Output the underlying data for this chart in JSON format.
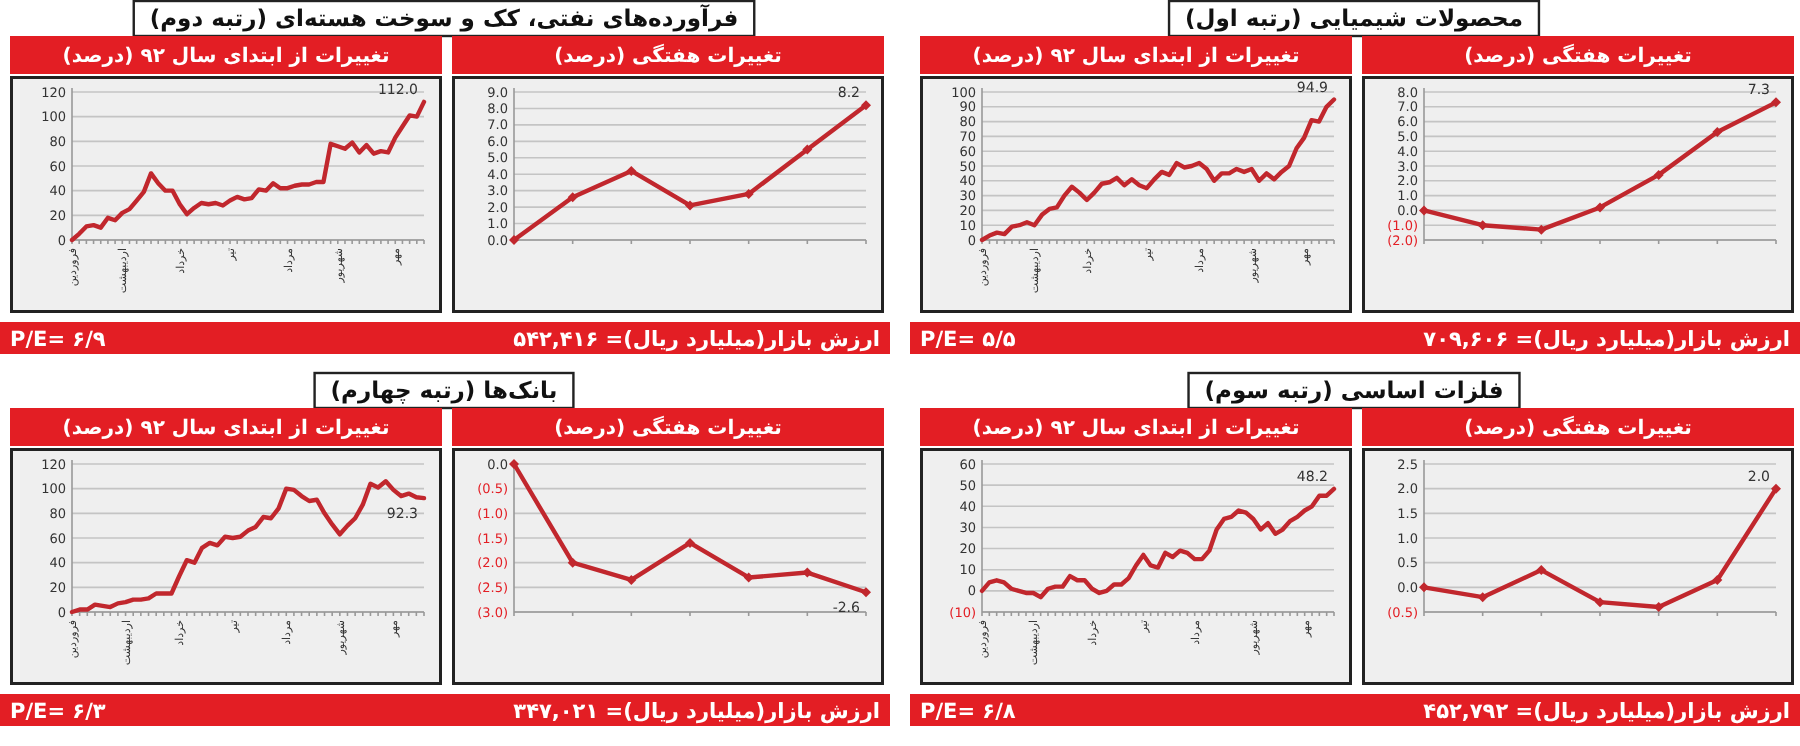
{
  "chart_data": [
    {
      "type": "other",
      "title": "محصولات شیمیایی (رتبه اول)",
      "annotations": [
        "ارزش بازار(میلیارد ریال)= ۷۰۹,۶۰۶",
        "P/E= ۵/۵"
      ]
    },
    {
      "type": "line",
      "title": "تغییرات هفتگی (درصد)",
      "categories": [
        null,
        null,
        null,
        null,
        null,
        null,
        null
      ],
      "values": [
        0.0,
        -1.0,
        -1.3,
        0.2,
        2.4,
        5.3,
        7.3
      ],
      "value_labels": [
        null,
        null,
        null,
        null,
        null,
        null,
        "7.3"
      ],
      "color": "#c1272d",
      "marker": "diamond",
      "grid": "y",
      "ylim": [
        -2,
        8
      ],
      "yticks": [
        {
          "value": -2,
          "label": "(2.0)"
        },
        {
          "value": -1,
          "label": "(1.0)"
        },
        {
          "value": 0,
          "label": "0.0"
        },
        {
          "value": 1,
          "label": "1.0"
        },
        {
          "value": 2,
          "label": "2.0"
        },
        {
          "value": 3,
          "label": "3.0"
        },
        {
          "value": 4,
          "label": "4.0"
        },
        {
          "value": 5,
          "label": "5.0"
        },
        {
          "value": 6,
          "label": "6.0"
        },
        {
          "value": 7,
          "label": "7.0"
        },
        {
          "value": 8,
          "label": "8.0"
        }
      ]
    },
    {
      "type": "line",
      "title": "تغییرات از ابتدای سال ۹۲ (درصد)",
      "color": "#c1272d",
      "grid": "y",
      "categories": [
        "فروردین",
        null,
        null,
        null,
        null,
        null,
        null,
        "اردیبهشت",
        null,
        null,
        null,
        null,
        null,
        null,
        "خرداد",
        null,
        null,
        null,
        null,
        null,
        null,
        null,
        "تیر",
        null,
        null,
        null,
        null,
        null,
        null,
        "مرداد",
        null,
        null,
        null,
        null,
        null,
        null,
        "شهریور",
        null,
        null,
        null,
        null,
        null,
        null,
        "مهر",
        null,
        null,
        null,
        null
      ],
      "ylim": [
        0,
        100
      ],
      "yticks": [
        0,
        10,
        20,
        30,
        40,
        50,
        60,
        70,
        80,
        90,
        100
      ],
      "values": [
        0,
        3,
        5,
        4,
        9,
        10,
        12,
        10,
        17,
        21,
        22,
        30,
        36,
        32,
        27,
        32,
        38,
        39,
        42,
        37,
        41,
        37,
        35,
        41,
        46,
        44,
        52,
        49,
        50,
        52,
        48,
        40,
        45,
        45,
        48,
        46,
        48,
        40,
        45,
        41,
        46,
        50,
        62,
        69,
        81,
        80,
        90,
        94.9
      ],
      "value_labels": [
        null,
        null,
        null,
        null,
        null,
        null,
        null,
        null,
        null,
        null,
        null,
        null,
        null,
        null,
        null,
        null,
        null,
        null,
        null,
        null,
        null,
        null,
        null,
        null,
        null,
        null,
        null,
        null,
        null,
        null,
        null,
        null,
        null,
        null,
        null,
        null,
        null,
        null,
        null,
        null,
        null,
        null,
        null,
        null,
        null,
        null,
        null,
        "94.9"
      ]
    },
    {
      "type": "other",
      "title": "فرآورده‌های نفتی، کک و سوخت هسته‌ای (رتبه دوم)",
      "annotations": [
        "ارزش بازار(میلیارد ریال)= ۵۴۲,۴۱۶",
        "P/E= ۶/۹"
      ]
    },
    {
      "type": "line",
      "title": "تغییرات هفتگی (درصد)",
      "categories": [
        null,
        null,
        null,
        null,
        null,
        null,
        null
      ],
      "values": [
        0.0,
        2.6,
        4.2,
        2.1,
        2.8,
        5.5,
        8.2
      ],
      "value_labels": [
        null,
        null,
        null,
        null,
        null,
        null,
        "8.2"
      ],
      "color": "#c1272d",
      "marker": "diamond",
      "grid": "y",
      "ylim": [
        0,
        9
      ],
      "yticks": [
        {
          "value": 0,
          "label": "0.0"
        },
        {
          "value": 1,
          "label": "1.0"
        },
        {
          "value": 2,
          "label": "2.0"
        },
        {
          "value": 3,
          "label": "3.0"
        },
        {
          "value": 4,
          "label": "4.0"
        },
        {
          "value": 5,
          "label": "5.0"
        },
        {
          "value": 6,
          "label": "6.0"
        },
        {
          "value": 7,
          "label": "7.0"
        },
        {
          "value": 8,
          "label": "8.0"
        },
        {
          "value": 9,
          "label": "9.0"
        }
      ]
    },
    {
      "type": "line",
      "title": "تغییرات از ابتدای سال ۹۲ (درصد)",
      "color": "#c1272d",
      "grid": "y",
      "categories": [
        "فروردین",
        null,
        null,
        null,
        null,
        null,
        null,
        "اردیبهشت",
        null,
        null,
        null,
        null,
        null,
        null,
        null,
        "خرداد",
        null,
        null,
        null,
        null,
        null,
        null,
        "تیر",
        null,
        null,
        null,
        null,
        null,
        null,
        null,
        "مرداد",
        null,
        null,
        null,
        null,
        null,
        null,
        "شهریور",
        null,
        null,
        null,
        null,
        null,
        null,
        null,
        "مهر",
        null,
        null,
        null,
        null
      ],
      "ylim": [
        0,
        120
      ],
      "yticks": [
        0,
        20,
        40,
        60,
        80,
        100,
        120
      ],
      "values": [
        0,
        5,
        11,
        12,
        10,
        18,
        16,
        22,
        25,
        32,
        39,
        54,
        46,
        40,
        40,
        29,
        21,
        26,
        30,
        29,
        30,
        28,
        32,
        35,
        33,
        34,
        41,
        40,
        46,
        42,
        42,
        44,
        45,
        45,
        47,
        47,
        78,
        76,
        74,
        79,
        71,
        77,
        70,
        72,
        71,
        83,
        92,
        101,
        100,
        112.0
      ],
      "value_labels": [
        null,
        null,
        null,
        null,
        null,
        null,
        null,
        null,
        null,
        null,
        null,
        null,
        null,
        null,
        null,
        null,
        null,
        null,
        null,
        null,
        null,
        null,
        null,
        null,
        null,
        null,
        null,
        null,
        null,
        null,
        null,
        null,
        null,
        null,
        null,
        null,
        null,
        null,
        null,
        null,
        null,
        null,
        null,
        null,
        null,
        null,
        null,
        null,
        null,
        "112.0"
      ]
    },
    {
      "type": "other",
      "title": "فلزات اساسی (رتبه سوم)",
      "annotations": [
        "ارزش بازار(میلیارد ریال)= ۴۵۲,۷۹۲",
        "P/E= ۶/۸"
      ]
    },
    {
      "type": "line",
      "title": "تغییرات هفتگی (درصد)",
      "categories": [
        null,
        null,
        null,
        null,
        null,
        null,
        null
      ],
      "values": [
        0.0,
        -0.2,
        0.35,
        -0.3,
        -0.4,
        0.15,
        2.0
      ],
      "value_labels": [
        null,
        null,
        null,
        null,
        null,
        null,
        "2.0"
      ],
      "color": "#c1272d",
      "marker": "diamond",
      "grid": "y",
      "ylim": [
        -0.5,
        2.5
      ],
      "yticks": [
        {
          "value": -0.5,
          "label": "(0.5)"
        },
        {
          "value": 0,
          "label": "0.0"
        },
        {
          "value": 0.5,
          "label": "0.5"
        },
        {
          "value": 1,
          "label": "1.0"
        },
        {
          "value": 1.5,
          "label": "1.5"
        },
        {
          "value": 2,
          "label": "2.0"
        },
        {
          "value": 2.5,
          "label": "2.5"
        }
      ]
    },
    {
      "type": "line",
      "title": "تغییرات از ابتدای سال ۹۲ (درصد)",
      "color": "#c1272d",
      "grid": "y",
      "categories": [
        "فروردین",
        null,
        null,
        null,
        null,
        null,
        null,
        "اردیبهشت",
        null,
        null,
        null,
        null,
        null,
        null,
        null,
        "خرداد",
        null,
        null,
        null,
        null,
        null,
        null,
        "تیر",
        null,
        null,
        null,
        null,
        null,
        null,
        "مرداد",
        null,
        null,
        null,
        null,
        null,
        null,
        null,
        "شهریور",
        null,
        null,
        null,
        null,
        null,
        null,
        "مهر",
        null,
        null,
        null,
        null
      ],
      "ylim": [
        -10,
        60
      ],
      "yticks": [
        {
          "value": -10,
          "label": "(10)"
        },
        0,
        10,
        20,
        30,
        40,
        50,
        60
      ],
      "values": [
        0,
        4,
        5,
        4,
        1,
        0,
        -1,
        -1,
        -3,
        1,
        2,
        2,
        7,
        5,
        5,
        1,
        -1,
        0,
        3,
        3,
        6,
        12,
        17,
        12,
        11,
        18,
        16,
        19,
        18,
        15,
        15,
        19,
        29,
        34,
        35,
        38,
        37,
        34,
        29,
        32,
        27,
        29,
        33,
        35,
        38,
        40,
        45,
        45,
        48.2
      ],
      "value_labels": [
        null,
        null,
        null,
        null,
        null,
        null,
        null,
        null,
        null,
        null,
        null,
        null,
        null,
        null,
        null,
        null,
        null,
        null,
        null,
        null,
        null,
        null,
        null,
        null,
        null,
        null,
        null,
        null,
        null,
        null,
        null,
        null,
        null,
        null,
        null,
        null,
        null,
        null,
        null,
        null,
        null,
        null,
        null,
        null,
        null,
        null,
        null,
        null,
        "48.2"
      ]
    },
    {
      "type": "other",
      "title": "بانک‌ها (رتبه چهارم)",
      "annotations": [
        "ارزش بازار(میلیارد ریال)= ۳۴۷,۰۲۱",
        "P/E= ۶/۳"
      ]
    },
    {
      "type": "line",
      "title": "تغییرات هفتگی (درصد)",
      "categories": [
        null,
        null,
        null,
        null,
        null,
        null,
        null
      ],
      "values": [
        0.0,
        -2.0,
        -2.35,
        -1.6,
        -2.3,
        -2.2,
        -2.6
      ],
      "value_labels": [
        null,
        null,
        null,
        null,
        null,
        null,
        "-2.6"
      ],
      "color": "#c1272d",
      "marker": "diamond",
      "grid": "y",
      "ylim": [
        -3,
        0
      ],
      "yticks": [
        {
          "value": -3,
          "label": "(3.0)"
        },
        {
          "value": -2.5,
          "label": "(2.5)"
        },
        {
          "value": -2,
          "label": "(2.0)"
        },
        {
          "value": -1.5,
          "label": "(1.5)"
        },
        {
          "value": -1,
          "label": "(1.0)"
        },
        {
          "value": -0.5,
          "label": "(0.5)"
        },
        {
          "value": 0,
          "label": "0.0"
        }
      ]
    },
    {
      "type": "line",
      "title": "تغییرات از ابتدای سال ۹۲ (درصد)",
      "color": "#c1272d",
      "grid": "y",
      "categories": [
        "فروردین",
        null,
        null,
        null,
        null,
        null,
        null,
        "اردیبهشت",
        null,
        null,
        null,
        null,
        null,
        null,
        "خرداد",
        null,
        null,
        null,
        null,
        null,
        null,
        "تیر",
        null,
        null,
        null,
        null,
        null,
        null,
        "مرداد",
        null,
        null,
        null,
        null,
        null,
        null,
        "شهریور",
        null,
        null,
        null,
        null,
        null,
        null,
        "مهر",
        null,
        null,
        null,
        null
      ],
      "ylim": [
        0,
        120
      ],
      "yticks": [
        0,
        20,
        40,
        60,
        80,
        100,
        120
      ],
      "values": [
        0,
        2,
        2,
        6,
        5,
        4,
        7,
        8,
        10,
        10,
        11,
        15,
        15,
        15,
        29,
        42,
        40,
        52,
        56,
        54,
        61,
        60,
        61,
        66,
        69,
        77,
        76,
        84,
        100,
        99,
        94,
        90,
        91,
        80,
        71,
        63,
        70,
        76,
        87,
        104,
        101,
        106,
        99,
        94,
        96,
        93,
        92.3
      ],
      "value_labels": [
        null,
        null,
        null,
        null,
        null,
        null,
        null,
        null,
        null,
        null,
        null,
        null,
        null,
        null,
        null,
        null,
        null,
        null,
        null,
        null,
        null,
        null,
        null,
        null,
        null,
        null,
        null,
        null,
        null,
        null,
        null,
        null,
        null,
        null,
        null,
        null,
        null,
        null,
        null,
        null,
        null,
        null,
        null,
        null,
        null,
        null,
        "92.3"
      ]
    }
  ]
}
